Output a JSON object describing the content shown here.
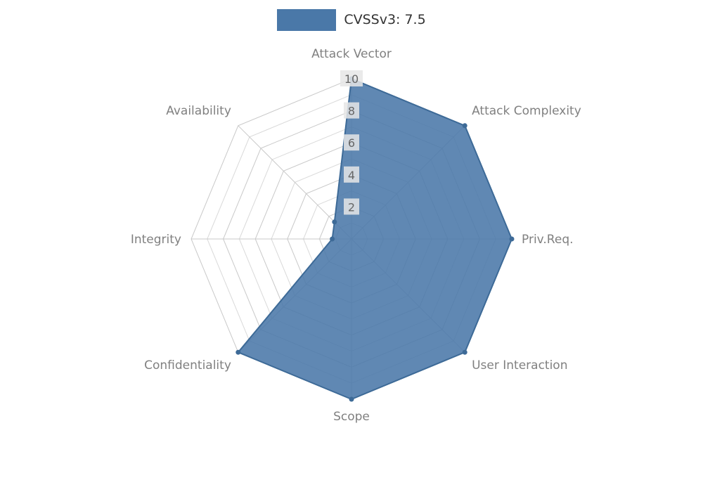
{
  "chart_data": {
    "type": "radar",
    "title": "",
    "legend": {
      "label": "CVSSv3: 7.5",
      "position": "top-center"
    },
    "categories": [
      "Attack Vector",
      "Attack Complexity",
      "Priv.Req.",
      "User Interaction",
      "Scope",
      "Confidentiality",
      "Integrity",
      "Availability"
    ],
    "series": [
      {
        "name": "CVSSv3: 7.5",
        "values": [
          10,
          10,
          10,
          10,
          10,
          10,
          1.2,
          1.5
        ],
        "color": "#4a78a8"
      }
    ],
    "ticks": [
      2,
      4,
      6,
      8,
      10
    ],
    "rlim": [
      0,
      10
    ],
    "grid": true,
    "axis_direction": "clockwise-from-top"
  },
  "colors": {
    "background": "#ffffff",
    "series_fill": "#4a78a8",
    "series_stroke": "#3d6a97",
    "grid": "#c9c9c9",
    "grid_minor": "#d9d9d9",
    "axis_label": "#808080",
    "tick_text": "#666666",
    "tick_bg": "#e6e6e6",
    "legend_text": "#333333"
  }
}
